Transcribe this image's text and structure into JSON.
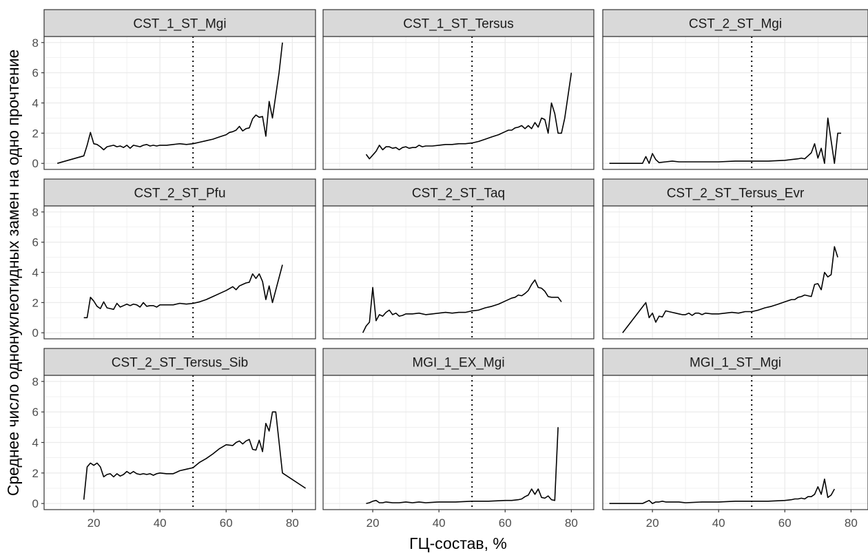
{
  "chart_data": {
    "type": "line",
    "layout": "facet-grid-3x3",
    "xlabel": "ГЦ-состав, %",
    "ylabel": "Среднее число однонуклеотидных замен на одно прочтение",
    "xlim": [
      5,
      87
    ],
    "ylim": [
      -0.4,
      8.4
    ],
    "x_ticks": [
      20,
      40,
      60,
      80
    ],
    "y_ticks": [
      0,
      2,
      4,
      6,
      8
    ],
    "reference_line": {
      "x": 50,
      "style": "dotted"
    },
    "grid": true,
    "panels": [
      {
        "name": "CST_1_ST_Mgi",
        "x": [
          9,
          17,
          18,
          19,
          20,
          21,
          22,
          23,
          24,
          25,
          26,
          27,
          28,
          29,
          30,
          31,
          32,
          33,
          34,
          35,
          36,
          37,
          38,
          39,
          40,
          42,
          44,
          46,
          48,
          50,
          52,
          54,
          56,
          58,
          60,
          61,
          62,
          63,
          64,
          65,
          66,
          67,
          68,
          69,
          70,
          71,
          72,
          73,
          74,
          75,
          76,
          77
        ],
        "y": [
          0,
          0.5,
          1.2,
          2.05,
          1.3,
          1.25,
          1.1,
          0.9,
          1.1,
          1.15,
          1.2,
          1.1,
          1.15,
          1.05,
          1.2,
          1.0,
          1.2,
          1.15,
          1.1,
          1.2,
          1.25,
          1.15,
          1.2,
          1.15,
          1.2,
          1.2,
          1.25,
          1.3,
          1.25,
          1.3,
          1.4,
          1.5,
          1.6,
          1.75,
          1.9,
          2.05,
          2.1,
          2.2,
          2.45,
          2.15,
          2.3,
          2.35,
          2.95,
          3.2,
          3.05,
          3.1,
          1.8,
          4.1,
          3.0,
          4.5,
          6.0,
          8.0
        ]
      },
      {
        "name": "CST_1_ST_Tersus",
        "x": [
          18,
          19,
          20,
          21,
          22,
          23,
          24,
          25,
          26,
          27,
          28,
          29,
          30,
          31,
          32,
          33,
          34,
          35,
          36,
          37,
          38,
          40,
          42,
          44,
          46,
          48,
          50,
          52,
          54,
          56,
          58,
          60,
          61,
          62,
          63,
          64,
          65,
          66,
          67,
          68,
          69,
          70,
          71,
          72,
          73,
          74,
          75,
          76,
          77,
          78,
          80
        ],
        "y": [
          0.6,
          0.3,
          0.55,
          0.8,
          1.2,
          0.9,
          1.1,
          1.1,
          1.0,
          1.05,
          0.9,
          1.05,
          1.1,
          1.0,
          1.05,
          1.05,
          1.2,
          1.1,
          1.15,
          1.15,
          1.15,
          1.2,
          1.25,
          1.25,
          1.3,
          1.3,
          1.35,
          1.45,
          1.6,
          1.75,
          1.9,
          2.1,
          2.2,
          2.2,
          2.35,
          2.4,
          2.5,
          2.3,
          2.5,
          2.3,
          2.7,
          2.4,
          3.0,
          2.9,
          2.0,
          4.0,
          3.3,
          2.0,
          2.0,
          3.0,
          6.0
        ]
      },
      {
        "name": "CST_2_ST_Mgi",
        "x": [
          7,
          17,
          18,
          19,
          20,
          21,
          22,
          24,
          26,
          28,
          30,
          35,
          40,
          45,
          50,
          55,
          60,
          62,
          64,
          65,
          66,
          67,
          68,
          69,
          70,
          71,
          72,
          73,
          74,
          75,
          76,
          77
        ],
        "y": [
          0,
          0,
          0.45,
          0,
          0.65,
          0.25,
          0.05,
          0.1,
          0.15,
          0.1,
          0.1,
          0.1,
          0.1,
          0.15,
          0.15,
          0.15,
          0.2,
          0.25,
          0.3,
          0.35,
          0.3,
          0.5,
          0.7,
          1.3,
          0.35,
          1.0,
          0,
          3.0,
          1.5,
          0,
          2.0,
          2.0
        ]
      },
      {
        "name": "CST_2_ST_Pfu",
        "x": [
          17,
          18,
          19,
          20,
          21,
          22,
          23,
          24,
          25,
          26,
          27,
          28,
          29,
          30,
          31,
          32,
          33,
          34,
          35,
          36,
          37,
          38,
          39,
          40,
          42,
          44,
          46,
          48,
          50,
          52,
          54,
          56,
          58,
          60,
          62,
          63,
          64,
          65,
          66,
          67,
          68,
          69,
          70,
          71,
          72,
          73,
          74,
          77
        ],
        "y": [
          1.0,
          1.0,
          2.35,
          2.1,
          1.75,
          1.6,
          2.05,
          1.65,
          1.6,
          1.55,
          1.95,
          1.7,
          1.8,
          1.9,
          1.8,
          1.9,
          1.85,
          1.7,
          2.0,
          1.75,
          1.8,
          1.8,
          1.7,
          1.85,
          1.85,
          1.85,
          1.95,
          1.9,
          1.95,
          2.05,
          2.2,
          2.4,
          2.6,
          2.8,
          3.05,
          2.85,
          3.1,
          3.2,
          3.3,
          3.35,
          3.9,
          3.6,
          3.9,
          3.4,
          2.2,
          3.1,
          2.0,
          4.5
        ]
      },
      {
        "name": "CST_2_ST_Taq",
        "x": [
          17,
          18,
          19,
          20,
          21,
          22,
          23,
          24,
          25,
          26,
          27,
          28,
          29,
          30,
          32,
          34,
          36,
          38,
          40,
          42,
          44,
          46,
          48,
          50,
          52,
          54,
          56,
          58,
          60,
          62,
          63,
          64,
          65,
          66,
          67,
          68,
          69,
          70,
          71,
          72,
          73,
          74,
          75,
          76,
          77
        ],
        "y": [
          0,
          0.45,
          0.7,
          3.0,
          0.8,
          1.2,
          1.1,
          1.35,
          1.5,
          1.2,
          1.3,
          1.1,
          1.15,
          1.25,
          1.25,
          1.3,
          1.2,
          1.25,
          1.3,
          1.35,
          1.3,
          1.35,
          1.35,
          1.45,
          1.5,
          1.65,
          1.75,
          1.9,
          2.1,
          2.3,
          2.35,
          2.5,
          2.45,
          2.6,
          2.8,
          3.2,
          3.5,
          3.0,
          2.95,
          2.75,
          2.4,
          2.35,
          2.35,
          2.35,
          2.05
        ]
      },
      {
        "name": "CST_2_ST_Tersus_Evr",
        "x": [
          11,
          18,
          19,
          20,
          21,
          22,
          23,
          24,
          25,
          26,
          27,
          28,
          29,
          30,
          31,
          32,
          33,
          34,
          35,
          36,
          38,
          40,
          42,
          44,
          46,
          48,
          50,
          52,
          54,
          56,
          58,
          60,
          62,
          63,
          64,
          65,
          66,
          67,
          68,
          69,
          70,
          71,
          72,
          73,
          74,
          75,
          76
        ],
        "y": [
          0,
          2.0,
          1.0,
          1.3,
          0.7,
          1.1,
          1.05,
          1.45,
          1.4,
          1.35,
          1.3,
          1.25,
          1.2,
          1.2,
          1.3,
          1.15,
          1.3,
          1.3,
          1.2,
          1.3,
          1.25,
          1.25,
          1.3,
          1.35,
          1.3,
          1.4,
          1.4,
          1.5,
          1.65,
          1.75,
          1.9,
          2.05,
          2.2,
          2.2,
          2.35,
          2.4,
          2.5,
          2.45,
          2.4,
          3.2,
          3.25,
          2.85,
          4.0,
          3.7,
          3.85,
          5.7,
          5.0
        ]
      },
      {
        "name": "CST_2_ST_Tersus_Sib",
        "x": [
          17,
          18,
          19,
          20,
          21,
          22,
          23,
          24,
          25,
          26,
          27,
          28,
          29,
          30,
          31,
          32,
          33,
          34,
          35,
          36,
          37,
          38,
          39,
          40,
          42,
          44,
          46,
          48,
          50,
          52,
          54,
          56,
          58,
          60,
          62,
          63,
          64,
          65,
          66,
          67,
          68,
          69,
          70,
          71,
          72,
          73,
          74,
          75,
          77,
          84
        ],
        "y": [
          0.25,
          2.4,
          2.65,
          2.5,
          2.65,
          2.4,
          1.75,
          1.9,
          1.95,
          1.75,
          1.95,
          1.8,
          1.9,
          2.1,
          1.95,
          2.1,
          1.95,
          1.9,
          1.95,
          1.9,
          1.95,
          1.85,
          1.95,
          2.0,
          1.95,
          1.95,
          2.15,
          2.25,
          2.35,
          2.7,
          2.95,
          3.25,
          3.6,
          3.85,
          3.8,
          4.0,
          4.1,
          3.9,
          4.1,
          4.2,
          3.55,
          3.5,
          4.15,
          3.4,
          5.25,
          4.75,
          6.0,
          6.0,
          2.0,
          1.0
        ]
      },
      {
        "name": "MGI_1_EX_Mgi",
        "x": [
          18,
          19,
          20,
          21,
          22,
          23,
          24,
          26,
          28,
          30,
          32,
          34,
          36,
          40,
          45,
          50,
          55,
          60,
          62,
          64,
          65,
          66,
          67,
          68,
          69,
          70,
          71,
          72,
          73,
          74,
          75,
          76
        ],
        "y": [
          0,
          0.05,
          0.15,
          0.2,
          0.05,
          0.05,
          0.1,
          0.05,
          0.05,
          0.1,
          0.05,
          0.1,
          0.05,
          0.1,
          0.1,
          0.15,
          0.15,
          0.2,
          0.2,
          0.25,
          0.3,
          0.45,
          0.55,
          0.95,
          0.6,
          0.95,
          0.4,
          0.35,
          0.5,
          0.25,
          0.2,
          5.0
        ]
      },
      {
        "name": "MGI_1_ST_Mgi",
        "x": [
          7,
          17,
          18,
          19,
          20,
          21,
          22,
          23,
          24,
          26,
          28,
          30,
          35,
          40,
          45,
          50,
          55,
          60,
          62,
          63,
          64,
          65,
          66,
          67,
          68,
          69,
          70,
          71,
          72,
          73,
          74,
          75
        ],
        "y": [
          0,
          0,
          0.1,
          0.2,
          0,
          0.1,
          0.1,
          0.15,
          0.1,
          0.1,
          0.1,
          0.05,
          0.1,
          0.1,
          0.15,
          0.15,
          0.15,
          0.2,
          0.25,
          0.3,
          0.3,
          0.35,
          0.3,
          0.45,
          0.45,
          0.6,
          1.1,
          0.6,
          1.6,
          0.4,
          0.55,
          0.95
        ]
      }
    ]
  }
}
